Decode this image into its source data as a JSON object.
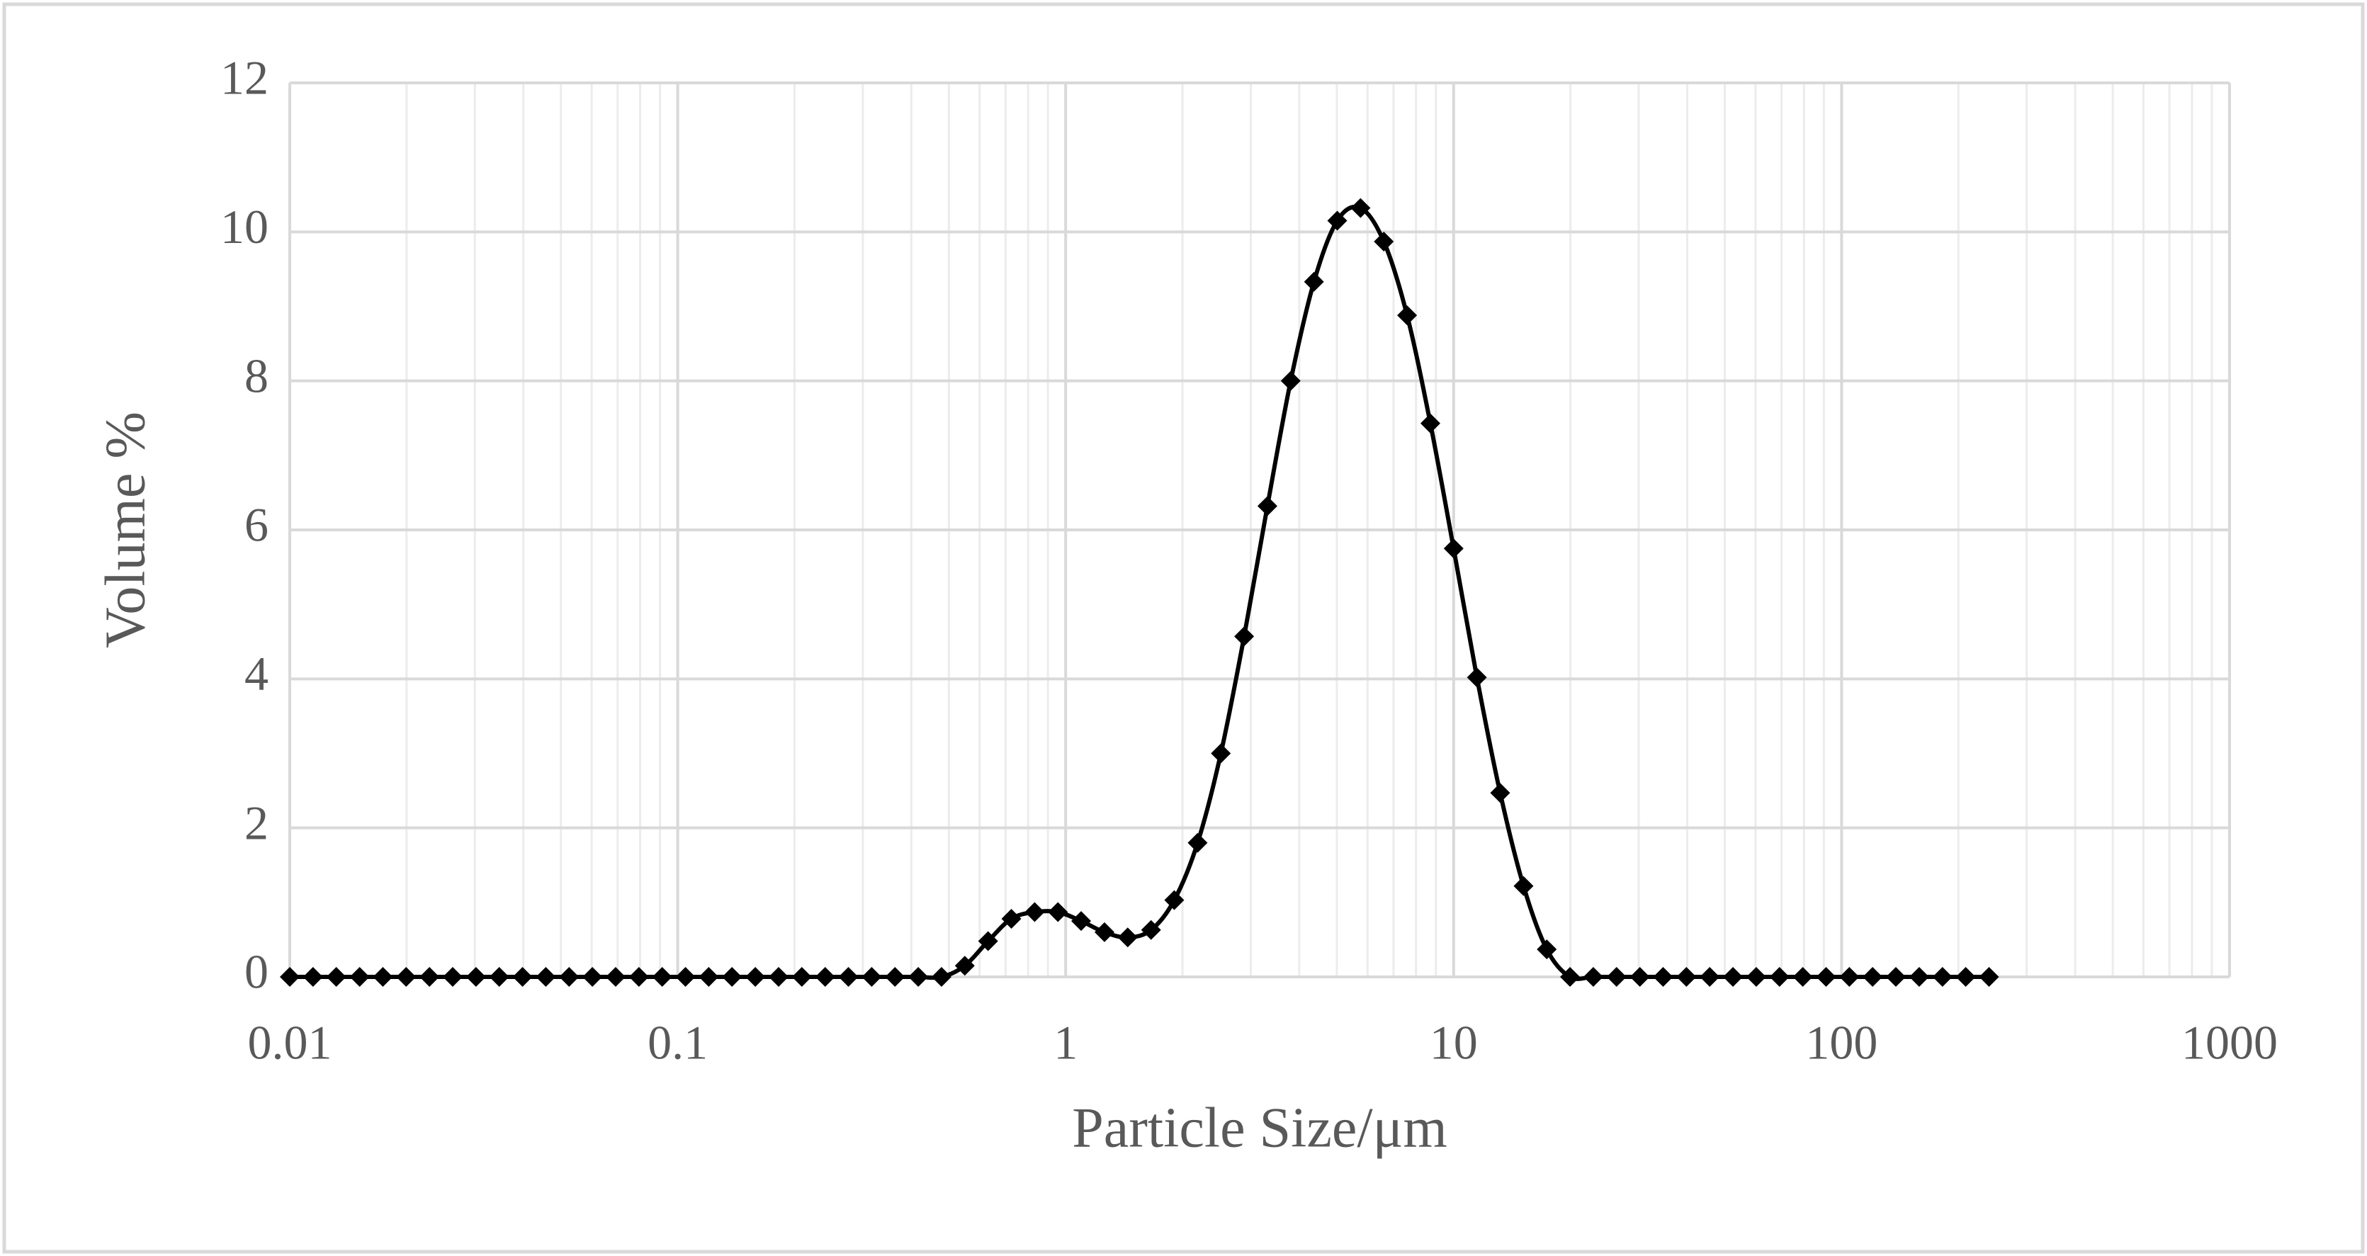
{
  "chart_data": {
    "type": "line",
    "xlabel": "Particle Size/μm",
    "ylabel": "Volume %",
    "xscale": "log",
    "grid": true,
    "minor_grid": true,
    "smooth": true,
    "xlim": [
      0.01,
      1000
    ],
    "ylim": [
      0,
      12
    ],
    "xticks": [
      0.01,
      0.1,
      1,
      10,
      100,
      1000
    ],
    "yticks": [
      0,
      2,
      4,
      6,
      8,
      10,
      12
    ],
    "x": [
      0.01,
      0.01148,
      0.01318,
      0.01514,
      0.01738,
      0.01995,
      0.02291,
      0.0263,
      0.0302,
      0.03467,
      0.03981,
      0.04571,
      0.05248,
      0.06026,
      0.06918,
      0.07943,
      0.0912,
      0.1047,
      0.1202,
      0.138,
      0.1585,
      0.182,
      0.2089,
      0.2399,
      0.2754,
      0.3162,
      0.3631,
      0.4169,
      0.4786,
      0.5495,
      0.631,
      0.7244,
      0.8318,
      0.955,
      1.096,
      1.259,
      1.445,
      1.66,
      1.905,
      2.188,
      2.512,
      2.884,
      3.311,
      3.802,
      4.365,
      5.012,
      5.754,
      6.607,
      7.586,
      8.71,
      10,
      11.48,
      13.18,
      15.14,
      17.38,
      19.95,
      22.91,
      26.3,
      30.2,
      34.67,
      39.81,
      45.71,
      52.48,
      60.26,
      69.18,
      79.43,
      91.2,
      104.7,
      120.2,
      138,
      158.5,
      182,
      208.9,
      239.9
    ],
    "series": [
      {
        "color": "#000000",
        "marker": "diamond",
        "values": [
          0,
          0,
          0,
          0,
          0,
          0,
          0,
          0,
          0,
          0,
          0,
          0,
          0,
          0,
          0,
          0,
          0,
          0,
          0,
          0,
          0,
          0,
          0,
          0,
          0,
          0,
          0,
          0,
          0,
          0.15,
          0.48,
          0.78,
          0.87,
          0.87,
          0.75,
          0.6,
          0.53,
          0.63,
          1.03,
          1.8,
          3.0,
          4.57,
          6.32,
          8.0,
          9.33,
          10.15,
          10.32,
          9.87,
          8.88,
          7.43,
          5.75,
          4.02,
          2.47,
          1.22,
          0.37,
          0,
          0,
          0,
          0,
          0,
          0,
          0,
          0,
          0,
          0,
          0,
          0,
          0,
          0,
          0,
          0,
          0,
          0,
          0
        ]
      }
    ]
  }
}
